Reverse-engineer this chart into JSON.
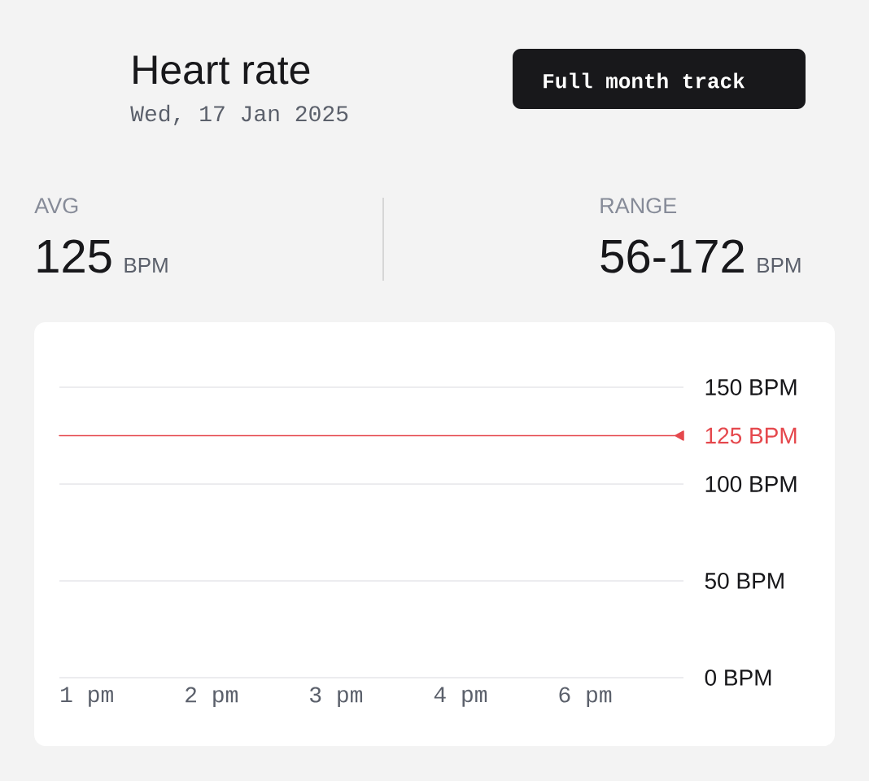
{
  "chart_data": {
    "type": "line",
    "title": "Heart rate",
    "subtitle": "Wed, 17 Jan 2025",
    "annotations": [
      "Full month track",
      "AVG",
      "125",
      "BPM",
      "RANGE",
      "56-172",
      "BPM"
    ],
    "categories": [
      "1 pm",
      "2 pm",
      "3 pm",
      "4 pm",
      "6 pm"
    ],
    "ylim": [
      0,
      150
    ],
    "yticks": [
      {
        "value": 0,
        "label": "0 BPM"
      },
      {
        "value": 50,
        "label": "50 BPM"
      },
      {
        "value": 100,
        "label": "100 BPM"
      },
      {
        "value": 150,
        "label": "150 BPM"
      }
    ],
    "grid": "y",
    "ref_lines": [
      {
        "axis": "y",
        "value": 125,
        "label": "125 BPM",
        "color": "#e5484d"
      }
    ]
  }
}
